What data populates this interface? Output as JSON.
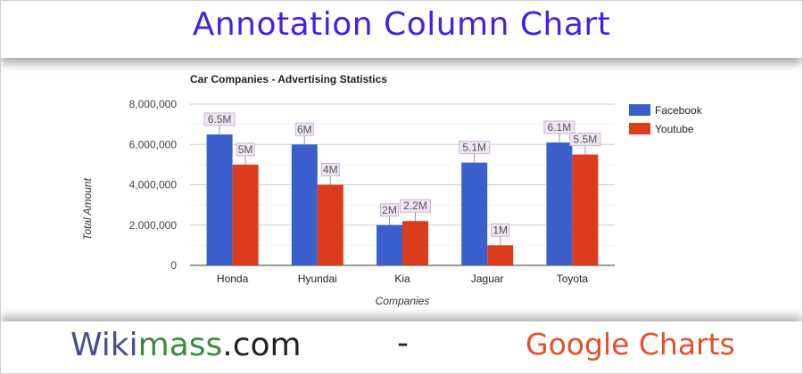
{
  "page": {
    "title": "Annotation Column Chart"
  },
  "footer": {
    "brand_part1": "Wiki",
    "brand_part2": "mass",
    "brand_part3": ".com",
    "separator": "-",
    "right_text": "Google Charts"
  },
  "chart_data": {
    "type": "bar",
    "title": "Car Companies - Advertising Statistics",
    "xlabel": "Companies",
    "ylabel": "Total Amount",
    "categories": [
      "Honda",
      "Hyundai",
      "Kia",
      "Jaguar",
      "Toyota"
    ],
    "series": [
      {
        "name": "Facebook",
        "color": "#3b5fcc",
        "values": [
          6500000,
          6000000,
          2000000,
          5100000,
          6100000
        ],
        "annotations": [
          "6.5M",
          "6M",
          "2M",
          "5.1M",
          "6.1M"
        ]
      },
      {
        "name": "Youtube",
        "color": "#dc3c1c",
        "values": [
          5000000,
          4000000,
          2200000,
          1000000,
          5500000
        ],
        "annotations": [
          "5M",
          "4M",
          "2.2M",
          "1M",
          "5.5M"
        ]
      }
    ],
    "ylim": [
      0,
      8000000
    ],
    "yticks": [
      0,
      2000000,
      4000000,
      6000000,
      8000000
    ],
    "ytick_labels": [
      "0",
      "2,000,000",
      "4,000,000",
      "6,000,000",
      "8,000,000"
    ],
    "grid": true,
    "legend_position": "right"
  }
}
